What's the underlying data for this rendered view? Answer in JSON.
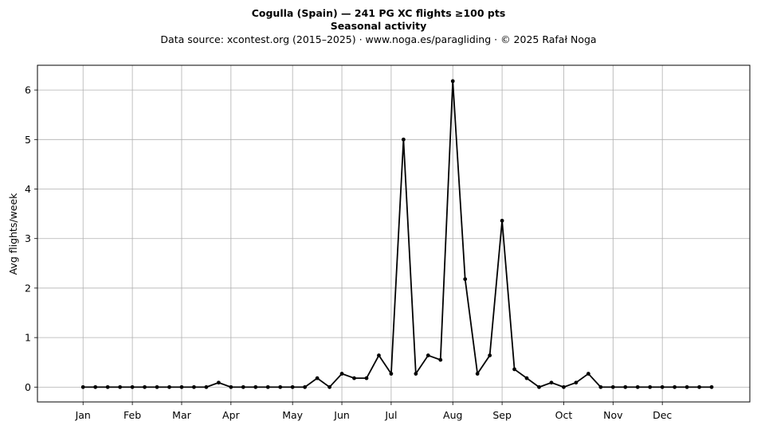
{
  "header": {
    "title": "Cogulla (Spain)  —  241 PG XC flights ≥100 pts",
    "subtitle": "Seasonal activity",
    "source": "Data source: xcontest.org (2015–2025)  ·  www.noga.es/paragliding  ·  © 2025 Rafał Noga"
  },
  "chart_data": {
    "type": "line",
    "title": "Cogulla (Spain)  —  241 PG XC flights ≥100 pts",
    "subtitle": "Seasonal activity",
    "xlabel": "",
    "ylabel": "Avg flights/week",
    "x_unit": "week of year",
    "xlim": [
      -2.7,
      55.1
    ],
    "ylim": [
      -0.3,
      6.5
    ],
    "grid": true,
    "month_ticks": [
      {
        "label": "Jan",
        "week": 1
      },
      {
        "label": "Feb",
        "week": 5
      },
      {
        "label": "Mar",
        "week": 9
      },
      {
        "label": "Apr",
        "week": 13
      },
      {
        "label": "May",
        "week": 18
      },
      {
        "label": "Jun",
        "week": 22
      },
      {
        "label": "Jul",
        "week": 26
      },
      {
        "label": "Aug",
        "week": 31
      },
      {
        "label": "Sep",
        "week": 35
      },
      {
        "label": "Oct",
        "week": 40
      },
      {
        "label": "Nov",
        "week": 44
      },
      {
        "label": "Dec",
        "week": 48
      }
    ],
    "y_ticks": [
      0,
      1,
      2,
      3,
      4,
      5,
      6
    ],
    "series": [
      {
        "color": "#000000",
        "marker": "circle",
        "x": [
          1,
          2,
          3,
          4,
          5,
          6,
          7,
          8,
          9,
          10,
          11,
          12,
          13,
          14,
          15,
          16,
          17,
          18,
          19,
          20,
          21,
          22,
          23,
          24,
          25,
          26,
          27,
          28,
          29,
          30,
          31,
          32,
          33,
          34,
          35,
          36,
          37,
          38,
          39,
          40,
          41,
          42,
          43,
          44,
          45,
          46,
          47,
          48,
          49,
          50,
          51,
          52
        ],
        "values": [
          0,
          0,
          0,
          0,
          0,
          0,
          0,
          0,
          0,
          0,
          0,
          0.09,
          0,
          0,
          0,
          0,
          0,
          0,
          0,
          0.18,
          0,
          0.27,
          0.18,
          0.18,
          0.64,
          0.27,
          5.0,
          0.27,
          0.64,
          0.55,
          6.18,
          2.18,
          0.27,
          0.64,
          3.36,
          0.36,
          0.18,
          0,
          0.09,
          0,
          0.09,
          0.27,
          0,
          0,
          0,
          0,
          0,
          0,
          0,
          0,
          0,
          0
        ]
      }
    ]
  }
}
